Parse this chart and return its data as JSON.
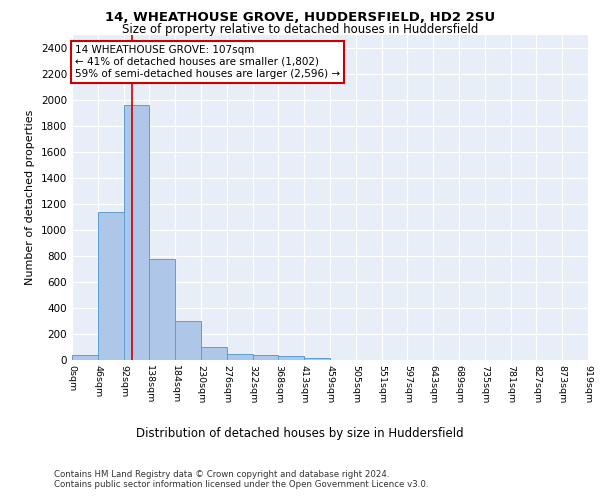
{
  "title1": "14, WHEATHOUSE GROVE, HUDDERSFIELD, HD2 2SU",
  "title2": "Size of property relative to detached houses in Huddersfield",
  "xlabel": "Distribution of detached houses by size in Huddersfield",
  "ylabel": "Number of detached properties",
  "bar_color": "#aec6e8",
  "bar_edge_color": "#5a9fd4",
  "bin_labels": [
    "0sqm",
    "46sqm",
    "92sqm",
    "138sqm",
    "184sqm",
    "230sqm",
    "276sqm",
    "322sqm",
    "368sqm",
    "413sqm",
    "459sqm",
    "505sqm",
    "551sqm",
    "597sqm",
    "643sqm",
    "689sqm",
    "735sqm",
    "781sqm",
    "827sqm",
    "873sqm",
    "919sqm"
  ],
  "bar_heights": [
    35,
    1135,
    1960,
    775,
    300,
    100,
    48,
    38,
    28,
    18,
    0,
    0,
    0,
    0,
    0,
    0,
    0,
    0,
    0,
    0
  ],
  "ylim": [
    0,
    2500
  ],
  "yticks": [
    0,
    200,
    400,
    600,
    800,
    1000,
    1200,
    1400,
    1600,
    1800,
    2000,
    2200,
    2400
  ],
  "property_line_x": 107,
  "bin_width": 46,
  "annotation_text": "14 WHEATHOUSE GROVE: 107sqm\n← 41% of detached houses are smaller (1,802)\n59% of semi-detached houses are larger (2,596) →",
  "annotation_box_color": "#ffffff",
  "annotation_border_color": "#cc0000",
  "vline_color": "#cc0000",
  "footnote1": "Contains HM Land Registry data © Crown copyright and database right 2024.",
  "footnote2": "Contains public sector information licensed under the Open Government Licence v3.0.",
  "plot_bg_color": "#e8eef7"
}
